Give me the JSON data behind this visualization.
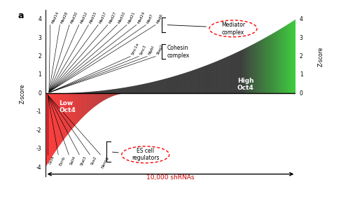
{
  "title_letter": "a",
  "upper_labels": [
    "Med14",
    "Med28",
    "Med30",
    "Med12",
    "Med15",
    "Med17",
    "Med27",
    "Med10",
    "Med21",
    "Med24",
    "Med7",
    "Med6"
  ],
  "cohesin_labels": [
    "Smc1a",
    "Smc3",
    "Nipbl",
    "Stag2"
  ],
  "lower_labels": [
    "Oct4",
    "Esrrb",
    "Sall4",
    "Stat3",
    "Sox2",
    "Nanog"
  ],
  "mediator_circle_text": "Mediator\ncomplex",
  "cohesin_complex_text": "Cohesin\ncomplex",
  "es_cell_text": "ES cell\nregulators",
  "low_oct4_text": "Low\nOct4",
  "high_oct4_text": "High\nOct4",
  "z_score_label": "Z-score",
  "x_arrow_label": "10,000 shRNAs",
  "background_color": "#ffffff"
}
